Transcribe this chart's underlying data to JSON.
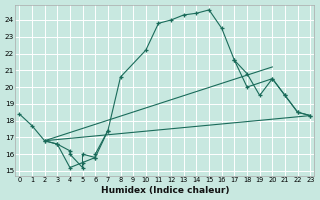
{
  "bg_color": "#c8e8e0",
  "grid_color": "#b8d8d0",
  "line_color": "#1a6b5a",
  "xlim": [
    -0.3,
    23.3
  ],
  "ylim": [
    14.7,
    24.9
  ],
  "yticks": [
    15,
    16,
    17,
    18,
    19,
    20,
    21,
    22,
    23,
    24
  ],
  "xticks": [
    0,
    1,
    2,
    3,
    4,
    5,
    6,
    7,
    8,
    9,
    10,
    11,
    12,
    13,
    14,
    15,
    16,
    17,
    18,
    19,
    20,
    21,
    22,
    23
  ],
  "xlabel": "Humidex (Indice chaleur)",
  "curve_main": {
    "x": [
      0,
      1,
      2,
      3,
      4,
      5,
      6,
      7,
      8,
      10,
      11,
      12,
      13,
      14,
      15,
      16,
      17,
      18,
      20,
      21,
      22,
      23
    ],
    "y": [
      18.4,
      17.7,
      16.8,
      16.6,
      15.2,
      15.5,
      15.8,
      17.4,
      20.6,
      22.2,
      23.8,
      24.0,
      24.3,
      24.4,
      24.6,
      23.5,
      21.6,
      20.0,
      20.5,
      19.5,
      18.5,
      18.3
    ]
  },
  "curve_zigzag": {
    "x": [
      2,
      3,
      4,
      4,
      5,
      5,
      6,
      6,
      7
    ],
    "y": [
      16.8,
      16.6,
      16.2,
      16.0,
      15.2,
      16.0,
      15.8,
      16.0,
      17.4
    ]
  },
  "straight1": {
    "x": [
      2,
      23
    ],
    "y": [
      16.8,
      18.3
    ]
  },
  "straight2": {
    "x": [
      2,
      20
    ],
    "y": [
      16.8,
      21.2
    ]
  },
  "curve_partial": {
    "x": [
      17,
      18,
      19,
      20,
      21,
      22,
      23
    ],
    "y": [
      21.6,
      20.8,
      19.5,
      20.5,
      19.5,
      18.5,
      18.3
    ]
  }
}
